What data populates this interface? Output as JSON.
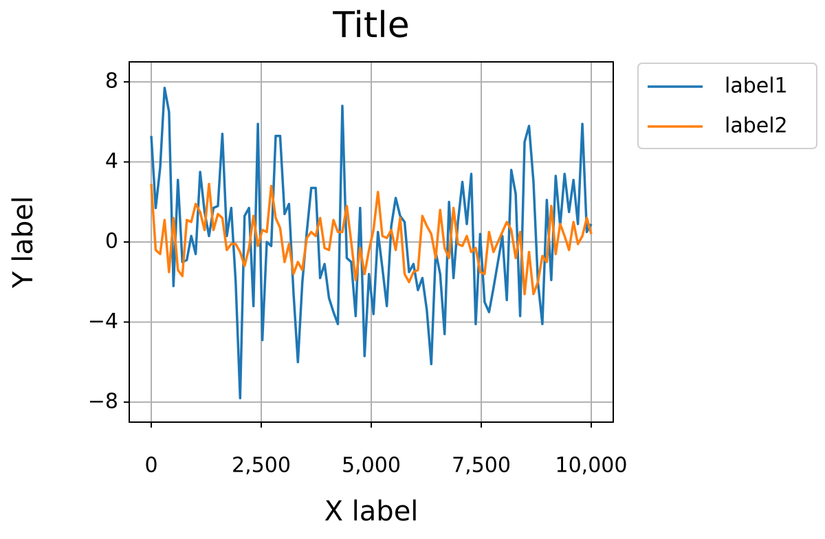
{
  "chart_data": {
    "type": "line",
    "title": "Title",
    "xlabel": "X label",
    "ylabel": "Y label",
    "x": [
      0,
      101,
      202,
      303,
      404,
      505,
      606,
      707,
      808,
      909,
      1010,
      1111,
      1212,
      1313,
      1414,
      1515,
      1616,
      1717,
      1818,
      1919,
      2020,
      2121,
      2222,
      2323,
      2424,
      2525,
      2626,
      2727,
      2828,
      2929,
      3030,
      3131,
      3232,
      3333,
      3434,
      3535,
      3636,
      3737,
      3838,
      3939,
      4040,
      4141,
      4242,
      4343,
      4444,
      4545,
      4646,
      4747,
      4848,
      4949,
      5051,
      5152,
      5253,
      5354,
      5455,
      5556,
      5657,
      5758,
      5859,
      5960,
      6061,
      6162,
      6263,
      6364,
      6465,
      6566,
      6667,
      6768,
      6869,
      6970,
      7071,
      7172,
      7273,
      7374,
      7475,
      7576,
      7677,
      7778,
      7879,
      7980,
      8081,
      8182,
      8283,
      8384,
      8485,
      8586,
      8687,
      8788,
      8889,
      8990,
      9091,
      9192,
      9293,
      9394,
      9495,
      9596,
      9697,
      9798,
      9899,
      10000
    ],
    "series": [
      {
        "name": "label1",
        "color": "#1f77b4",
        "values": [
          5.3,
          1.7,
          3.7,
          7.7,
          6.5,
          -2.2,
          3.1,
          -1.0,
          -0.9,
          0.3,
          -0.6,
          3.5,
          1.5,
          0.3,
          1.7,
          1.8,
          5.4,
          0.3,
          1.7,
          -2.0,
          -7.8,
          1.3,
          1.7,
          -3.2,
          5.9,
          -4.9,
          0.0,
          -0.2,
          5.3,
          5.3,
          1.4,
          1.9,
          -2.5,
          -6.0,
          -2.0,
          0.5,
          2.7,
          2.7,
          -1.8,
          -1.1,
          -2.8,
          -3.5,
          -4.1,
          6.8,
          -0.8,
          -1.0,
          -3.7,
          1.7,
          -5.7,
          -1.6,
          -3.6,
          0.5,
          -1.3,
          -3.2,
          0.8,
          2.2,
          1.3,
          1.0,
          -1.5,
          -1.1,
          -2.4,
          -1.8,
          -3.4,
          -6.1,
          -0.5,
          -1.6,
          -4.6,
          2.0,
          -1.8,
          1.0,
          3.0,
          0.9,
          3.4,
          -4.1,
          0.4,
          -3.0,
          -3.5,
          -2.3,
          -1.0,
          0.3,
          -2.9,
          3.6,
          2.4,
          -3.7,
          5.0,
          5.8,
          3.0,
          -2.0,
          -4.1,
          2.1,
          -1.9,
          3.3,
          0.8,
          3.4,
          1.5,
          3.1,
          0.9,
          5.9,
          0.5,
          0.9
        ]
      },
      {
        "name": "label2",
        "color": "#ff7f0e",
        "values": [
          2.9,
          -0.4,
          -0.6,
          1.1,
          -1.5,
          1.2,
          -1.4,
          -1.7,
          1.1,
          1.0,
          1.9,
          1.5,
          0.6,
          2.9,
          0.6,
          1.4,
          1.2,
          -0.4,
          -0.1,
          -0.1,
          -0.5,
          -1.2,
          -0.3,
          1.3,
          -0.2,
          0.6,
          0.5,
          2.8,
          1.2,
          0.7,
          -1.0,
          -0.1,
          -1.6,
          -1.0,
          -1.4,
          0.2,
          0.5,
          0.3,
          1.2,
          -0.3,
          -0.4,
          1.1,
          0.5,
          0.5,
          1.8,
          0.0,
          -1.9,
          -0.3,
          -1.6,
          -0.4,
          0.6,
          2.5,
          0.3,
          0.2,
          0.6,
          -0.4,
          1.2,
          -1.6,
          -2.0,
          -1.5,
          -1.4,
          1.3,
          0.8,
          0.4,
          -0.8,
          1.6,
          -0.3,
          -0.8,
          1.7,
          -0.1,
          -0.2,
          0.3,
          -0.5,
          -0.3,
          -1.5,
          -1.6,
          0.5,
          -0.5,
          0.0,
          0.5,
          1.0,
          0.6,
          -0.8,
          0.5,
          -2.6,
          -0.5,
          -2.6,
          -2.0,
          -0.7,
          -1.0,
          1.8,
          -0.6,
          0.9,
          0.3,
          -0.4,
          1.0,
          -0.1,
          0.3,
          1.2,
          0.4
        ]
      }
    ],
    "xlim": [
      -500,
      10500
    ],
    "ylim": [
      -9,
      9
    ],
    "xticks": [
      0,
      {
        "value": 2500,
        "label": "2,500"
      },
      {
        "value": 5000,
        "label": "5,000"
      },
      {
        "value": 7500,
        "label": "7,500"
      },
      {
        "value": 10000,
        "label": "10,000"
      }
    ],
    "yticks": [
      {
        "value": -8,
        "label": "−8"
      },
      {
        "value": -4,
        "label": "−4"
      },
      0,
      4,
      8
    ],
    "grid": true,
    "legend": "outside upper right"
  }
}
